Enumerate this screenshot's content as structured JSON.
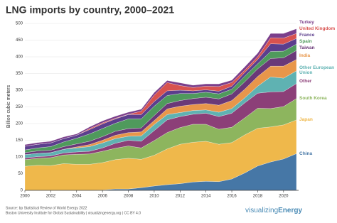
{
  "chart_data": {
    "type": "stacked_area",
    "title": "LNG imports by country, 2000–2021",
    "y_label": "Billion cubic meters",
    "x": [
      2000,
      2001,
      2002,
      2003,
      2004,
      2005,
      2006,
      2007,
      2008,
      2009,
      2010,
      2011,
      2012,
      2013,
      2014,
      2015,
      2016,
      2017,
      2018,
      2019,
      2020,
      2021
    ],
    "xlim": [
      2000,
      2021
    ],
    "xticks": [
      2000,
      2002,
      2004,
      2006,
      2008,
      2010,
      2012,
      2014,
      2016,
      2018,
      2020
    ],
    "ylim": [
      0,
      500
    ],
    "yticks": [
      0,
      50,
      100,
      150,
      200,
      250,
      300,
      350,
      400,
      450,
      500
    ],
    "grid": true,
    "series": [
      {
        "name": "China",
        "color": "#4677a6",
        "values": [
          0,
          0,
          0,
          0,
          0,
          0,
          1,
          4,
          4,
          8,
          13,
          17,
          20,
          25,
          27,
          26,
          34,
          52,
          73,
          85,
          94,
          110
        ]
      },
      {
        "name": "Japan",
        "color": "#efb84b",
        "values": [
          72,
          75,
          74,
          80,
          78,
          78,
          82,
          88,
          92,
          85,
          92,
          107,
          118,
          119,
          120,
          112,
          109,
          114,
          113,
          105,
          102,
          101
        ]
      },
      {
        "name": "South Korea",
        "color": "#8db55e",
        "values": [
          20,
          21,
          24,
          26,
          30,
          31,
          34,
          34,
          37,
          34,
          44,
          49,
          50,
          54,
          51,
          45,
          46,
          51,
          60,
          55,
          55,
          64
        ]
      },
      {
        "name": "Other",
        "color": "#8c3f78",
        "values": [
          5,
          5,
          5,
          6,
          7,
          8,
          10,
          15,
          17,
          20,
          30,
          38,
          33,
          30,
          33,
          38,
          42,
          45,
          45,
          50,
          45,
          45
        ]
      },
      {
        "name": "Other European Union",
        "color": "#5fb2b2",
        "values": [
          10,
          10,
          10,
          11,
          12,
          14,
          15,
          14,
          12,
          16,
          18,
          16,
          12,
          11,
          10,
          13,
          14,
          15,
          21,
          45,
          40,
          38
        ]
      },
      {
        "name": "India",
        "color": "#e8964a",
        "values": [
          0,
          0,
          0,
          0,
          3,
          6,
          8,
          10,
          11,
          12,
          12,
          17,
          19,
          18,
          19,
          21,
          24,
          26,
          29,
          32,
          36,
          34
        ]
      },
      {
        "name": "Taiwan",
        "color": "#6a3978",
        "values": [
          6,
          7,
          7,
          8,
          9,
          10,
          11,
          12,
          12,
          12,
          15,
          16,
          17,
          18,
          19,
          19,
          20,
          22,
          23,
          23,
          25,
          27
        ]
      },
      {
        "name": "Spain",
        "color": "#4f9a5c",
        "values": [
          8,
          9,
          11,
          14,
          17,
          22,
          24,
          24,
          29,
          27,
          28,
          24,
          21,
          15,
          15,
          15,
          14,
          17,
          15,
          21,
          20,
          19
        ]
      },
      {
        "name": "France",
        "color": "#5b3e8d",
        "values": [
          11,
          11,
          11,
          10,
          9,
          13,
          14,
          13,
          13,
          13,
          14,
          14,
          10,
          8,
          7,
          8,
          9,
          11,
          13,
          23,
          21,
          17
        ]
      },
      {
        "name": "United Kingdom",
        "color": "#d8524f",
        "values": [
          0,
          0,
          0,
          0,
          0,
          3,
          3,
          2,
          1,
          10,
          19,
          25,
          14,
          10,
          11,
          14,
          11,
          7,
          8,
          18,
          18,
          15
        ]
      },
      {
        "name": "Turkey",
        "color": "#7b3f8b",
        "values": [
          5,
          5,
          5,
          5,
          4,
          5,
          6,
          6,
          6,
          6,
          8,
          6,
          8,
          7,
          7,
          8,
          7,
          10,
          11,
          13,
          14,
          14
        ]
      }
    ]
  },
  "footer": {
    "source": "Source: bp Statistical Review of World Energy 2022",
    "credit": "Boston University Institute for Global Sustainability | visualizingenergy.org | CC BY 4.0",
    "logo_a": "visualizing",
    "logo_b": "Energy"
  }
}
